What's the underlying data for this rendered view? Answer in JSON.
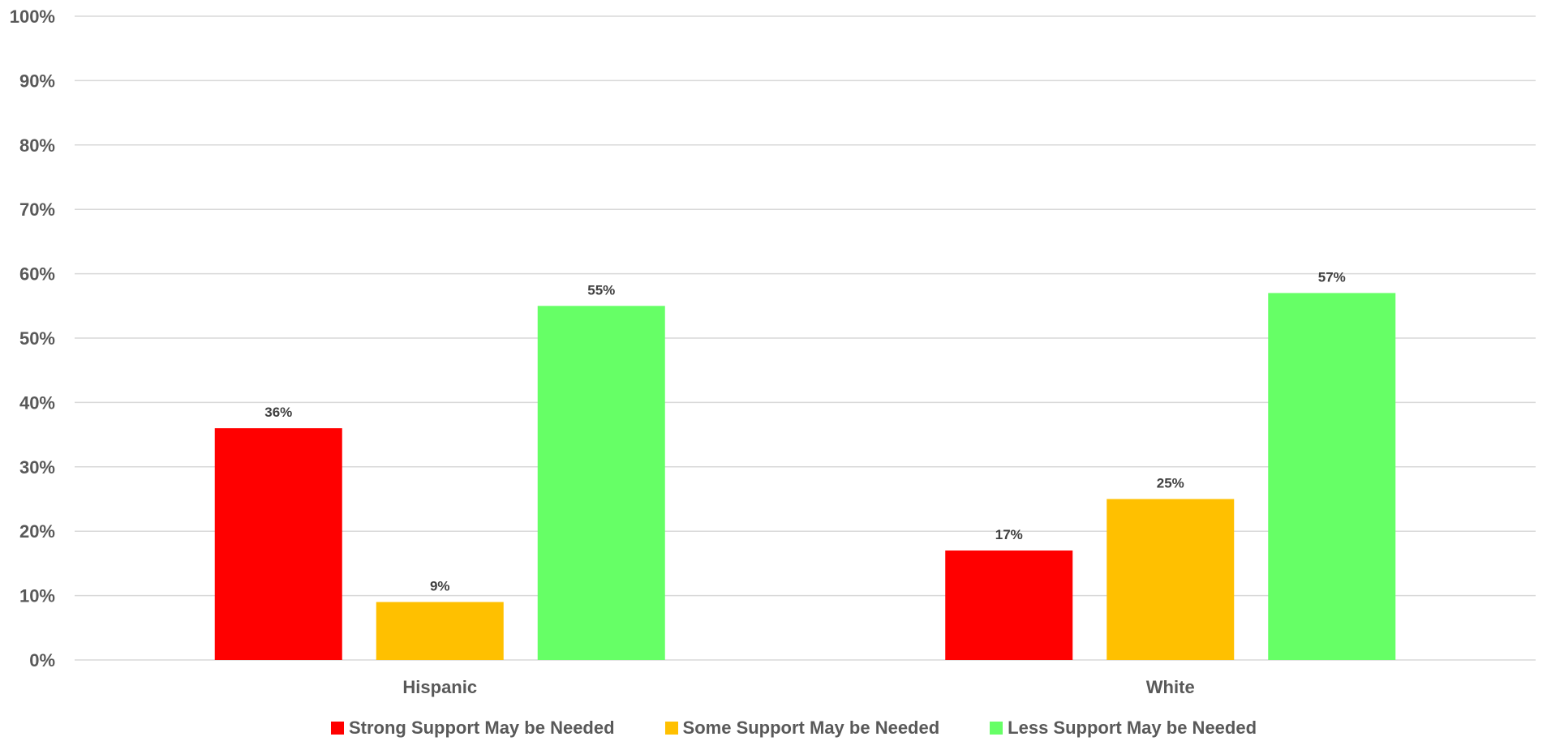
{
  "chart_data": {
    "type": "bar",
    "categories": [
      "Hispanic",
      "White"
    ],
    "series": [
      {
        "name": "Strong Support May be Needed",
        "color": "#ff0000",
        "values": [
          36,
          17
        ],
        "labels": [
          "36%",
          "17%"
        ]
      },
      {
        "name": "Some Support May be Needed",
        "color": "#ffc000",
        "values": [
          9,
          25
        ],
        "labels": [
          "9%",
          "25%"
        ]
      },
      {
        "name": "Less Support May be Needed",
        "color": "#66ff66",
        "values": [
          55,
          57
        ],
        "labels": [
          "55%",
          "57%"
        ]
      }
    ],
    "ylim": [
      0,
      100
    ],
    "yticks": [
      "0%",
      "10%",
      "20%",
      "30%",
      "40%",
      "50%",
      "60%",
      "70%",
      "80%",
      "90%",
      "100%"
    ],
    "grid": true,
    "legend_position": "bottom",
    "title": "",
    "xlabel": "",
    "ylabel": ""
  },
  "colors": {
    "gridline": "#d9d9d9",
    "axis_text": "#595959",
    "data_label_text": "#404040"
  }
}
